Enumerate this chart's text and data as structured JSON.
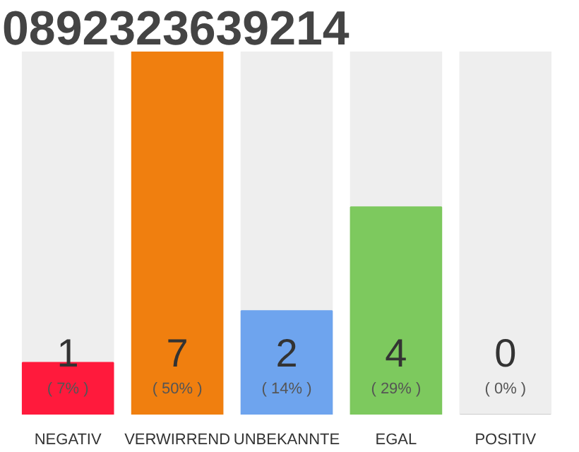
{
  "chart_data": {
    "type": "bar",
    "title": "0892323639214",
    "categories": [
      "NEGATIV",
      "VERWIRREND",
      "UNBEKANNTE",
      "EGAL",
      "POSITIV"
    ],
    "values": [
      1,
      7,
      2,
      4,
      0
    ],
    "colors": [
      "#ff1a3c",
      "#f07f0f",
      "#6ea4ee",
      "#7dc95e",
      "#cccccc"
    ],
    "data_labels": true,
    "annotations": [
      "( 7% )",
      "( 50% )",
      "( 14% )",
      "( 29% )",
      "( 0% )"
    ],
    "ylim": [
      0,
      7
    ],
    "tick_labels": "x"
  }
}
